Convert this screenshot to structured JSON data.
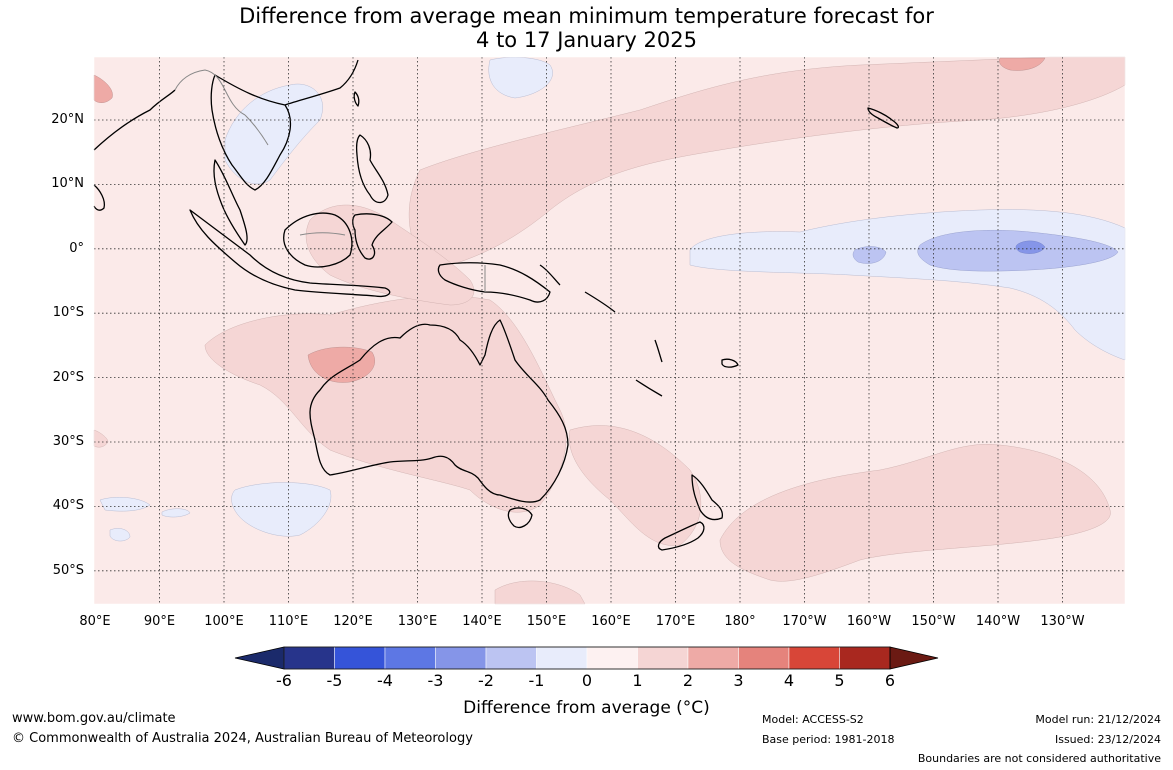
{
  "title_line1": "Difference from average mean minimum temperature forecast for",
  "title_line2": "4 to 17 January 2025",
  "lat_labels": [
    "20°N",
    "10°N",
    "0°",
    "10°S",
    "20°S",
    "30°S",
    "40°S",
    "50°S"
  ],
  "lon_labels": [
    "80°E",
    "90°E",
    "100°E",
    "110°E",
    "120°E",
    "130°E",
    "140°E",
    "150°E",
    "160°E",
    "170°E",
    "180°",
    "170°W",
    "160°W",
    "150°W",
    "140°W",
    "130°W"
  ],
  "colorbar": {
    "ticks": [
      "-6",
      "-5",
      "-4",
      "-3",
      "-2",
      "-1",
      "0",
      "1",
      "2",
      "3",
      "4",
      "5",
      "6"
    ],
    "colors": [
      "#27348b",
      "#3554d9",
      "#5d77e4",
      "#8595e8",
      "#bcc4f2",
      "#e8ecfb",
      "#fdf1f1",
      "#f5d5d4",
      "#eeaaa6",
      "#e5837c",
      "#d84638",
      "#a9281f",
      "#6b1a13"
    ],
    "title": "Difference from average (°C)"
  },
  "footer": {
    "website": "www.bom.gov.au/climate",
    "copyright": "© Commonwealth of Australia 2024, Australian Bureau of Meteorology",
    "model": "Model: ACCESS-S2",
    "base_period": "Base period: 1981-2018",
    "model_run": "Model run: 21/12/2024",
    "issued": "Issued: 23/12/2024",
    "disclaimer": "Boundaries are not considered authoritative"
  }
}
